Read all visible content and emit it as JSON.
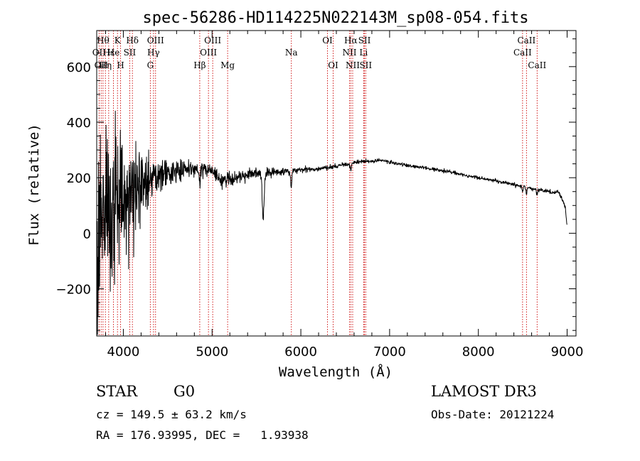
{
  "chart_data": {
    "type": "line",
    "title": "spec-56286-HD114225N022143M_sp08-054.fits",
    "xlabel": "Wavelength (Å)",
    "ylabel": "Flux (relative)",
    "xlim": [
      3700,
      9100
    ],
    "ylim": [
      -370,
      730
    ],
    "xticks": [
      4000,
      5000,
      6000,
      7000,
      8000,
      9000
    ],
    "xtick_labels": [
      "4000",
      "5000",
      "6000",
      "7000",
      "8000",
      "9000"
    ],
    "yticks": [
      -200,
      0,
      200,
      400,
      600
    ],
    "ytick_labels": [
      "−200",
      "0",
      "200",
      "400",
      "600"
    ],
    "grid": false,
    "series": [
      {
        "name": "flux",
        "color": "#000000",
        "anchors": [
          [
            3700,
            0
          ],
          [
            3750,
            60
          ],
          [
            3800,
            80
          ],
          [
            3850,
            90
          ],
          [
            3900,
            110
          ],
          [
            3950,
            120
          ],
          [
            4000,
            130
          ],
          [
            4050,
            140
          ],
          [
            4100,
            150
          ],
          [
            4150,
            160
          ],
          [
            4200,
            170
          ],
          [
            4300,
            190
          ],
          [
            4400,
            205
          ],
          [
            4500,
            215
          ],
          [
            4600,
            222
          ],
          [
            4700,
            228
          ],
          [
            4800,
            232
          ],
          [
            4900,
            235
          ],
          [
            5000,
            225
          ],
          [
            5100,
            190
          ],
          [
            5200,
            195
          ],
          [
            5300,
            205
          ],
          [
            5400,
            212
          ],
          [
            5500,
            215
          ],
          [
            5600,
            212
          ],
          [
            5700,
            218
          ],
          [
            5800,
            220
          ],
          [
            5900,
            225
          ],
          [
            6000,
            228
          ],
          [
            6100,
            230
          ],
          [
            6200,
            232
          ],
          [
            6300,
            235
          ],
          [
            6400,
            242
          ],
          [
            6500,
            250
          ],
          [
            6550,
            248
          ],
          [
            6600,
            255
          ],
          [
            6700,
            258
          ],
          [
            6800,
            260
          ],
          [
            6900,
            262
          ],
          [
            7000,
            258
          ],
          [
            7100,
            250
          ],
          [
            7200,
            245
          ],
          [
            7300,
            240
          ],
          [
            7400,
            235
          ],
          [
            7500,
            230
          ],
          [
            7600,
            225
          ],
          [
            7700,
            220
          ],
          [
            7800,
            212
          ],
          [
            7900,
            205
          ],
          [
            8000,
            200
          ],
          [
            8100,
            195
          ],
          [
            8200,
            188
          ],
          [
            8300,
            182
          ],
          [
            8400,
            175
          ],
          [
            8500,
            168
          ],
          [
            8600,
            160
          ],
          [
            8700,
            155
          ],
          [
            8800,
            150
          ],
          [
            8850,
            145
          ],
          [
            8900,
            150
          ],
          [
            8950,
            120
          ],
          [
            8980,
            90
          ],
          [
            9000,
            20
          ]
        ],
        "noise_profile": [
          [
            3700,
            300
          ],
          [
            3800,
            250
          ],
          [
            3900,
            220
          ],
          [
            4000,
            190
          ],
          [
            4100,
            160
          ],
          [
            4200,
            110
          ],
          [
            4300,
            80
          ],
          [
            4400,
            55
          ],
          [
            4600,
            40
          ],
          [
            4800,
            28
          ],
          [
            5000,
            25
          ],
          [
            5200,
            22
          ],
          [
            5400,
            20
          ],
          [
            5600,
            18
          ],
          [
            5800,
            12
          ],
          [
            6000,
            9
          ],
          [
            6500,
            7
          ],
          [
            7000,
            6
          ],
          [
            8000,
            6
          ],
          [
            9000,
            6
          ]
        ],
        "dips": [
          {
            "x": 5575,
            "depth": 160,
            "width": 15
          },
          {
            "x": 5890,
            "depth": 60,
            "width": 10
          },
          {
            "x": 4860,
            "depth": 40,
            "width": 12
          },
          {
            "x": 6563,
            "depth": 25,
            "width": 10
          },
          {
            "x": 8498,
            "depth": 20,
            "width": 8
          },
          {
            "x": 8542,
            "depth": 22,
            "width": 8
          },
          {
            "x": 8662,
            "depth": 20,
            "width": 8
          }
        ]
      }
    ],
    "line_markers": [
      {
        "x": 3727,
        "label": "OII",
        "row": 2
      },
      {
        "x": 3750,
        "label": "OII",
        "row": 3
      },
      {
        "x": 3771,
        "label": "Hθ",
        "row": 1
      },
      {
        "x": 3798,
        "label": "Hη",
        "row": 3
      },
      {
        "x": 3835,
        "label": "Hε",
        "row": 2
      },
      {
        "x": 3889,
        "label": "He",
        "row": 2
      },
      {
        "x": 3934,
        "label": "K",
        "row": 1
      },
      {
        "x": 3969,
        "label": "H",
        "row": 3
      },
      {
        "x": 4072,
        "label": "SII",
        "row": 2
      },
      {
        "x": 4102,
        "label": "Hδ",
        "row": 1
      },
      {
        "x": 4304,
        "label": "G",
        "row": 3
      },
      {
        "x": 4340,
        "label": "Hγ",
        "row": 2
      },
      {
        "x": 4363,
        "label": "OIII",
        "row": 1
      },
      {
        "x": 4861,
        "label": "Hβ",
        "row": 3
      },
      {
        "x": 4959,
        "label": "OIII",
        "row": 2
      },
      {
        "x": 5007,
        "label": "OIII",
        "row": 1
      },
      {
        "x": 5175,
        "label": "Mg",
        "row": 3
      },
      {
        "x": 5893,
        "label": "Na",
        "row": 2
      },
      {
        "x": 6300,
        "label": "OI",
        "row": 1
      },
      {
        "x": 6364,
        "label": "OI",
        "row": 3
      },
      {
        "x": 6548,
        "label": "NII",
        "row": 2
      },
      {
        "x": 6563,
        "label": "Hα",
        "row": 1
      },
      {
        "x": 6584,
        "label": "NII",
        "row": 3
      },
      {
        "x": 6707,
        "label": "Li",
        "row": 2
      },
      {
        "x": 6717,
        "label": "SII",
        "row": 1
      },
      {
        "x": 6731,
        "label": "SII",
        "row": 3
      },
      {
        "x": 8498,
        "label": "CaII",
        "row": 2
      },
      {
        "x": 8542,
        "label": "CaII",
        "row": 1
      },
      {
        "x": 8662,
        "label": "CaII",
        "row": 3
      }
    ],
    "marker_color": "#cc0000"
  },
  "info": {
    "class_label": "STAR",
    "subclass": "G0",
    "survey": "LAMOST DR3",
    "redshift": "cz = 149.5 ± 63.2 km/s",
    "obs_date": "Obs-Date: 20121224",
    "coords": "RA = 176.93995, DEC =   1.93938"
  }
}
